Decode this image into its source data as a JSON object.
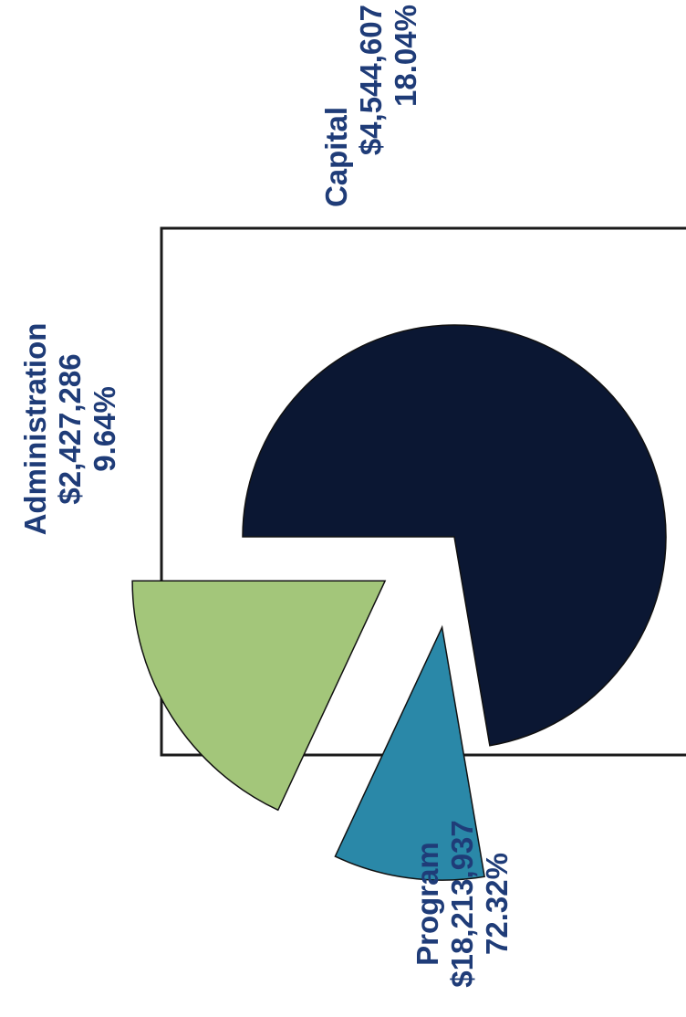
{
  "colors": {
    "program": "#0b1733",
    "administration": "#2a88a8",
    "capital": "#a3c67a",
    "label_text": "#1f3c78",
    "slice_outline": "#111111",
    "plot_border": "#1a1a1a"
  },
  "chart_data": {
    "type": "pie",
    "exploded": true,
    "orientation": "rotated 90 degrees counter-clockwise",
    "slices": [
      {
        "label": "Program",
        "amount": "$18,213,937",
        "percent": "72.32%",
        "value": 18213937,
        "color": "#0b1733"
      },
      {
        "label": "Administration",
        "amount": "$2,427,286",
        "percent": "9.64%",
        "value": 2427286,
        "color": "#2a88a8"
      },
      {
        "label": "Capital",
        "amount": "$4,544,607",
        "percent": "18.04%",
        "value": 4544607,
        "color": "#a3c67a"
      }
    ]
  }
}
